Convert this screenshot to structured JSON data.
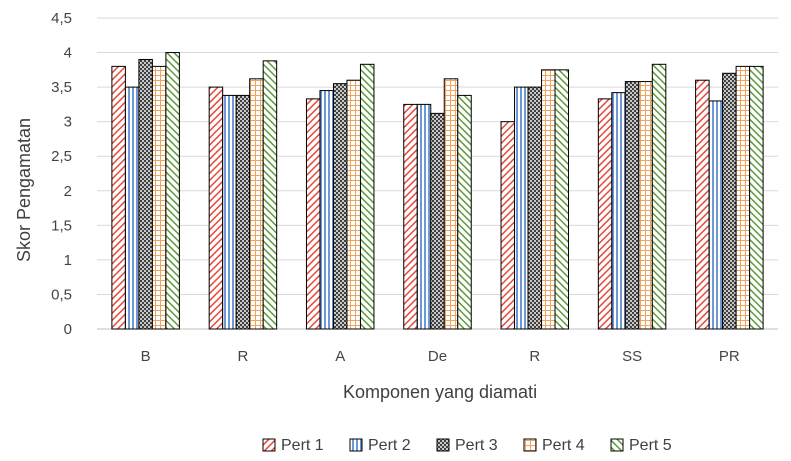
{
  "chart_data": {
    "type": "bar",
    "xlabel": "Komponen yang diamati",
    "ylabel": "Skor Pengamatan",
    "ylim": [
      0,
      4.5
    ],
    "y_ticks": [
      "0",
      "0,5",
      "1",
      "1,5",
      "2",
      "2,5",
      "3",
      "3,5",
      "4",
      "4,5"
    ],
    "grid": true,
    "legend_position": "bottom",
    "categories": [
      "B",
      "R",
      "A",
      "De",
      "R",
      "SS",
      "PR"
    ],
    "series": [
      {
        "name": "Pert 1",
        "values": [
          3.8,
          3.5,
          3.33,
          3.25,
          3.0,
          3.33,
          3.6
        ],
        "color": "#e8483a",
        "pattern": "diagonal-down"
      },
      {
        "name": "Pert 2",
        "values": [
          3.5,
          3.38,
          3.45,
          3.25,
          3.5,
          3.42,
          3.3
        ],
        "color": "#4a7ec8",
        "pattern": "vertical"
      },
      {
        "name": "Pert 3",
        "values": [
          3.9,
          3.38,
          3.55,
          3.12,
          3.5,
          3.58,
          3.7
        ],
        "color": "#555555",
        "pattern": "checker"
      },
      {
        "name": "Pert 4",
        "values": [
          3.8,
          3.62,
          3.6,
          3.62,
          3.75,
          3.58,
          3.8
        ],
        "color": "#f0a35e",
        "pattern": "grid"
      },
      {
        "name": "Pert 5",
        "values": [
          4.0,
          3.88,
          3.83,
          3.38,
          3.75,
          3.83,
          3.8
        ],
        "color": "#5d9a3a",
        "pattern": "diagonal-up"
      }
    ]
  }
}
